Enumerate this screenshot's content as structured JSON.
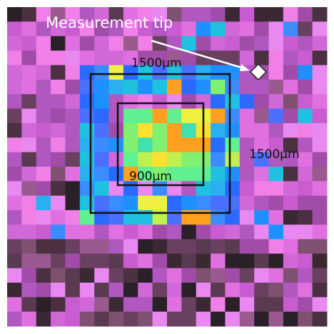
{
  "annotations": {
    "tip": "Measurement tip",
    "outer_width": "1500µm",
    "outer_height": "1500µm",
    "inner_width": "900µm"
  }
}
